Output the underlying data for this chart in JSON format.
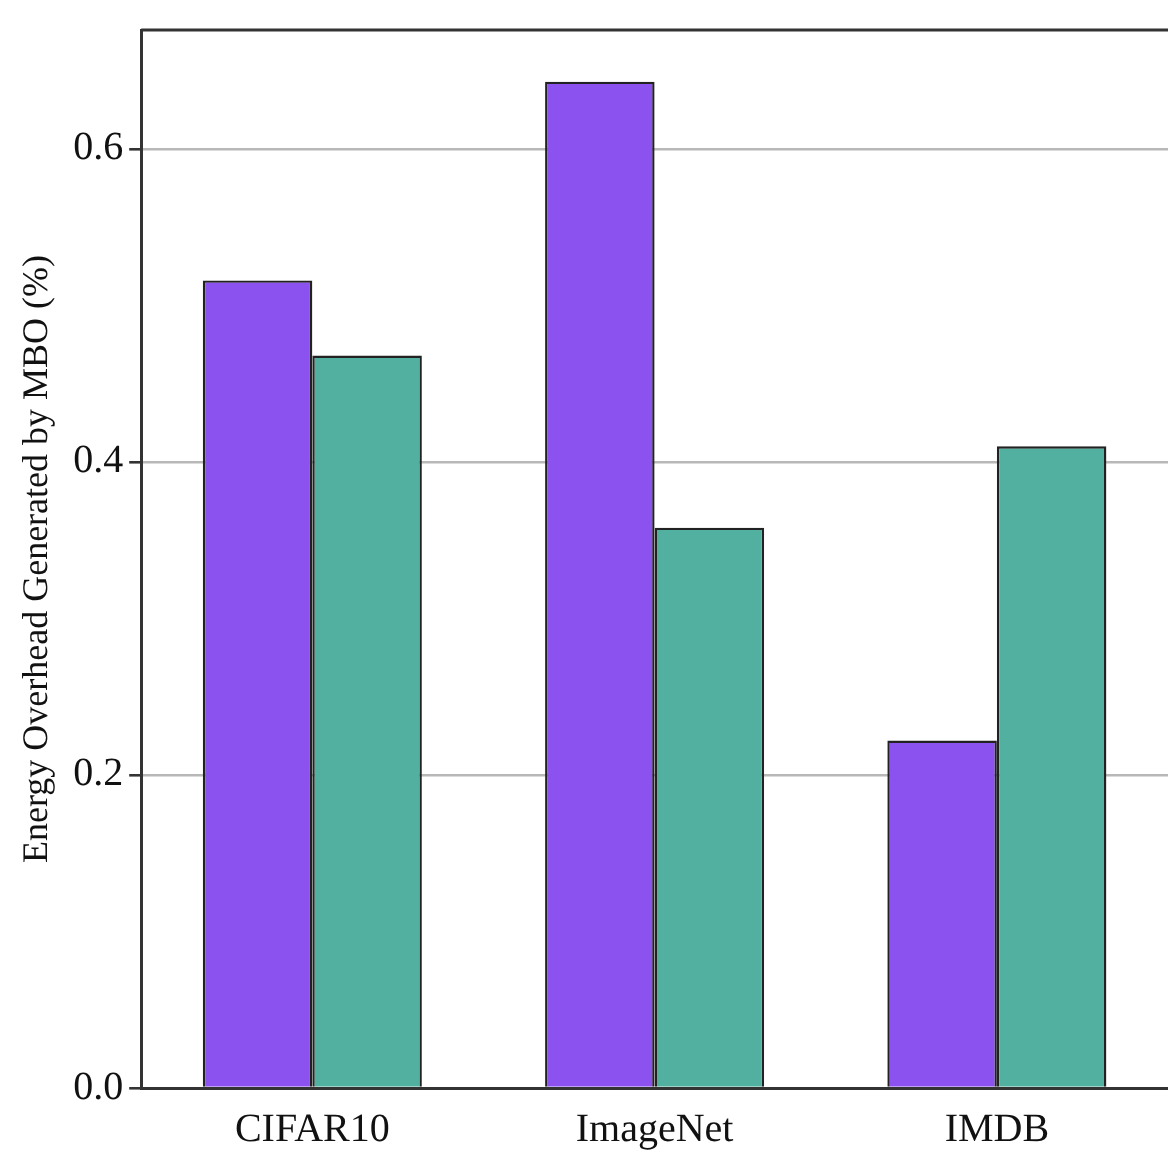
{
  "chart_data": {
    "type": "bar",
    "ylabel": "Energy Overhead Generated by MBO (%)",
    "categories": [
      "CIFAR10",
      "ImageNet",
      "IMDB"
    ],
    "series": [
      {
        "color": "#8c52f0",
        "values": [
          0.516,
          0.643,
          0.222
        ]
      },
      {
        "color": "#52b0a0",
        "values": [
          0.468,
          0.358,
          0.41
        ]
      }
    ],
    "ylim": [
      0,
      0.676
    ],
    "yticks": [
      {
        "value": 0,
        "label": "0.0"
      },
      {
        "value": 0.2,
        "label": "0.2"
      },
      {
        "value": 0.4,
        "label": "0.4"
      },
      {
        "value": 0.6,
        "label": "0.6"
      }
    ],
    "grid": "y",
    "legend": false
  }
}
